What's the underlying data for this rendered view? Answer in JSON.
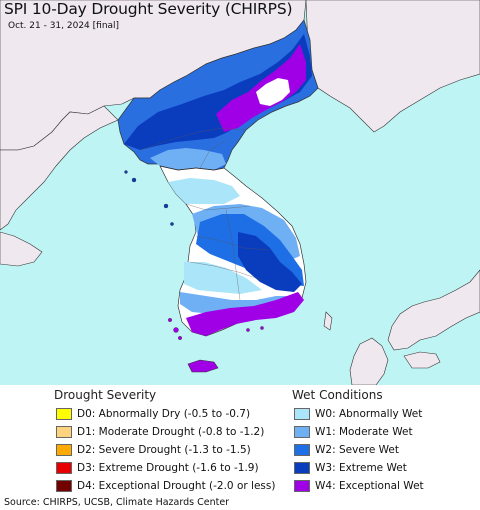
{
  "title": "SPI 10-Day Drought Severity (CHIRPS)",
  "subtitle": "Oct. 21 - 31, 2024 [final]",
  "colors": {
    "ocean": "#bff4f4",
    "land_outside": "#efe8ef",
    "land_nodata": "#ffffff"
  },
  "legend_drought": {
    "title": "Drought Severity",
    "items": [
      {
        "code": "D0",
        "label": "D0: Abnormally Dry (-0.5 to -0.7)",
        "color": "#ffff00"
      },
      {
        "code": "D1",
        "label": "D1: Moderate Drought (-0.8 to -1.2)",
        "color": "#fcd37f"
      },
      {
        "code": "D2",
        "label": "D2: Severe Drought (-1.3 to -1.5)",
        "color": "#ffaa00"
      },
      {
        "code": "D3",
        "label": "D3: Extreme Drought (-1.6 to -1.9)",
        "color": "#e60000"
      },
      {
        "code": "D4",
        "label": "D4: Exceptional Drought (-2.0 or less)",
        "color": "#730000"
      }
    ]
  },
  "legend_wet": {
    "title": "Wet Conditions",
    "items": [
      {
        "code": "W0",
        "label": "W0: Abnormally Wet",
        "color": "#aae5fa"
      },
      {
        "code": "W1",
        "label": "W1: Moderate Wet",
        "color": "#6fb0f5"
      },
      {
        "code": "W2",
        "label": "W2: Severe Wet",
        "color": "#1e6ee6"
      },
      {
        "code": "W3",
        "label": "W3: Extreme Wet",
        "color": "#0a3cbe"
      },
      {
        "code": "W4",
        "label": "W4: Exceptional Wet",
        "color": "#a000e6"
      }
    ]
  },
  "source": "Source: CHIRPS, UCSB, Climate Hazards Center"
}
